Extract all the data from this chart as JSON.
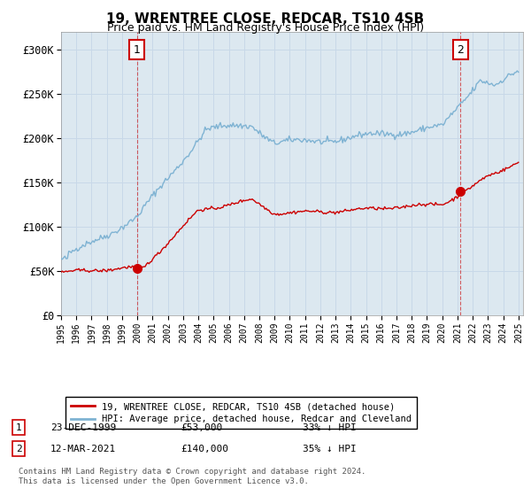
{
  "title": "19, WRENTREE CLOSE, REDCAR, TS10 4SB",
  "subtitle": "Price paid vs. HM Land Registry's House Price Index (HPI)",
  "ylim": [
    0,
    320000
  ],
  "yticks": [
    0,
    50000,
    100000,
    150000,
    200000,
    250000,
    300000
  ],
  "ytick_labels": [
    "£0",
    "£50K",
    "£100K",
    "£150K",
    "£200K",
    "£250K",
    "£300K"
  ],
  "hpi_color": "#7fb3d3",
  "price_color": "#cc0000",
  "sale1_year": 1999.97,
  "sale1_price": 53000,
  "sale2_year": 2021.19,
  "sale2_price": 140000,
  "sale1_date": "23-DEC-1999",
  "sale1_pct": "33% ↓ HPI",
  "sale2_date": "12-MAR-2021",
  "sale2_pct": "35% ↓ HPI",
  "legend_entry1": "19, WRENTREE CLOSE, REDCAR, TS10 4SB (detached house)",
  "legend_entry2": "HPI: Average price, detached house, Redcar and Cleveland",
  "footer": "Contains HM Land Registry data © Crown copyright and database right 2024.\nThis data is licensed under the Open Government Licence v3.0.",
  "grid_color": "#c8d8e8",
  "bg_color": "#dce8f0",
  "box_color": "#cc0000"
}
